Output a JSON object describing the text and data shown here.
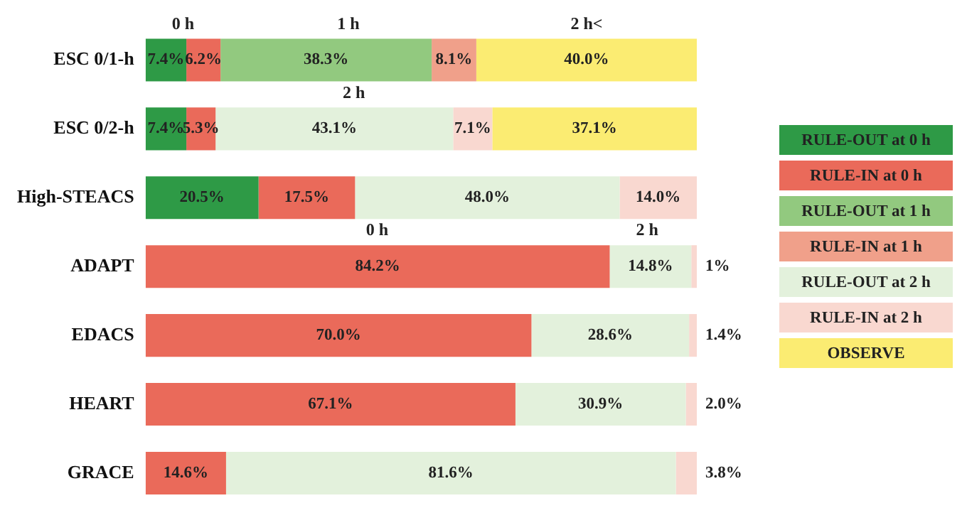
{
  "chart_data": {
    "type": "bar",
    "orientation": "horizontal",
    "stacked": true,
    "legend": "right",
    "grid": false,
    "tick_labels": "y",
    "xlim": [
      0,
      100
    ],
    "categories": [
      "ESC 0/1-h",
      "ESC 0/2-h",
      "High-STEACS",
      "ADAPT",
      "EDACS",
      "HEART",
      "GRACE"
    ],
    "series": [
      {
        "name": "RULE-OUT at 0 h",
        "color": "#2e9a46",
        "values": [
          7.4,
          7.4,
          20.5,
          null,
          null,
          null,
          null
        ],
        "value_labels": [
          "7.4%",
          "7.4%",
          "20.5%",
          null,
          null,
          null,
          null
        ]
      },
      {
        "name": "RULE-IN at 0 h",
        "color": "#ea6a5a",
        "values": [
          6.2,
          5.3,
          17.5,
          84.2,
          70.0,
          67.1,
          14.6
        ],
        "value_labels": [
          "6.2%",
          "5.3%",
          "17.5%",
          "84.2%",
          "70.0%",
          "67.1%",
          "14.6%"
        ]
      },
      {
        "name": "RULE-OUT at 1 h",
        "color": "#92c97f",
        "values": [
          38.3,
          null,
          null,
          null,
          null,
          null,
          null
        ],
        "value_labels": [
          "38.3%",
          null,
          null,
          null,
          null,
          null,
          null
        ]
      },
      {
        "name": "RULE-IN at 1 h",
        "color": "#f0a08a",
        "values": [
          8.1,
          null,
          null,
          null,
          null,
          null,
          null
        ],
        "value_labels": [
          "8.1%",
          null,
          null,
          null,
          null,
          null,
          null
        ]
      },
      {
        "name": "RULE-OUT at 2 h",
        "color": "#e3f1dc",
        "values": [
          null,
          43.1,
          48.0,
          14.8,
          28.6,
          30.9,
          81.6
        ],
        "value_labels": [
          null,
          "43.1%",
          "48.0%",
          "14.8%",
          "28.6%",
          "30.9%",
          "81.6%"
        ]
      },
      {
        "name": "RULE-IN at 2 h",
        "color": "#f9d8d0",
        "values": [
          null,
          7.1,
          14.0,
          1,
          1.4,
          2.0,
          3.8
        ],
        "value_labels": [
          null,
          "7.1%",
          "14.0%",
          "1%",
          "1.4%",
          "2.0%",
          "3.8%"
        ]
      },
      {
        "name": "OBSERVE",
        "color": "#fbec72",
        "values": [
          40.0,
          37.1,
          null,
          null,
          null,
          null,
          null
        ],
        "value_labels": [
          "40.0%",
          "37.1%",
          null,
          null,
          null,
          null,
          null
        ]
      }
    ],
    "annotations": [
      "0 h",
      "1 h",
      "2 h<",
      "2 h",
      "0 h",
      "2 h"
    ]
  }
}
